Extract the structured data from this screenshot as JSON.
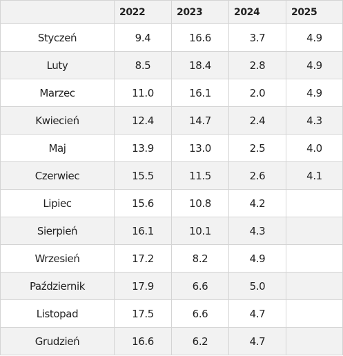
{
  "columns": [
    "",
    "2022",
    "2023",
    "2024",
    "2025"
  ],
  "rows": [
    {
      "month": "Styczeń",
      "values": [
        "9.4",
        "16.6",
        "3.7",
        "4.9"
      ]
    },
    {
      "month": "Luty",
      "values": [
        "8.5",
        "18.4",
        "2.8",
        "4.9"
      ]
    },
    {
      "month": "Marzec",
      "values": [
        "11.0",
        "16.1",
        "2.0",
        "4.9"
      ]
    },
    {
      "month": "Kwiecień",
      "values": [
        "12.4",
        "14.7",
        "2.4",
        "4.3"
      ]
    },
    {
      "month": "Maj",
      "values": [
        "13.9",
        "13.0",
        "2.5",
        "4.0"
      ]
    },
    {
      "month": "Czerwiec",
      "values": [
        "15.5",
        "11.5",
        "2.6",
        "4.1"
      ]
    },
    {
      "month": "Lipiec",
      "values": [
        "15.6",
        "10.8",
        "4.2",
        ""
      ]
    },
    {
      "month": "Sierpień",
      "values": [
        "16.1",
        "10.1",
        "4.3",
        ""
      ]
    },
    {
      "month": "Wrzesień",
      "values": [
        "17.2",
        "8.2",
        "4.9",
        ""
      ]
    },
    {
      "month": "Październik",
      "values": [
        "17.9",
        "6.6",
        "5.0",
        ""
      ]
    },
    {
      "month": "Listopad",
      "values": [
        "17.5",
        "6.6",
        "4.7",
        ""
      ]
    },
    {
      "month": "Grudzień",
      "values": [
        "16.6",
        "6.2",
        "4.7",
        ""
      ]
    }
  ],
  "chart_data": {
    "type": "table",
    "columns": [
      "",
      "2022",
      "2023",
      "2024",
      "2025"
    ],
    "categories": [
      "Styczeń",
      "Luty",
      "Marzec",
      "Kwiecień",
      "Maj",
      "Czerwiec",
      "Lipiec",
      "Sierpień",
      "Wrzesień",
      "Październik",
      "Listopad",
      "Grudzień"
    ],
    "series": [
      {
        "name": "2022",
        "values": [
          9.4,
          8.5,
          11.0,
          12.4,
          13.9,
          15.5,
          15.6,
          16.1,
          17.2,
          17.9,
          17.5,
          16.6
        ]
      },
      {
        "name": "2023",
        "values": [
          16.6,
          18.4,
          16.1,
          14.7,
          13.0,
          11.5,
          10.8,
          10.1,
          8.2,
          6.6,
          6.6,
          6.2
        ]
      },
      {
        "name": "2024",
        "values": [
          3.7,
          2.8,
          2.0,
          2.4,
          2.5,
          2.6,
          4.2,
          4.3,
          4.9,
          5.0,
          4.7,
          4.7
        ]
      },
      {
        "name": "2025",
        "values": [
          4.9,
          4.9,
          4.9,
          4.3,
          4.0,
          4.1,
          null,
          null,
          null,
          null,
          null,
          null
        ]
      }
    ]
  }
}
